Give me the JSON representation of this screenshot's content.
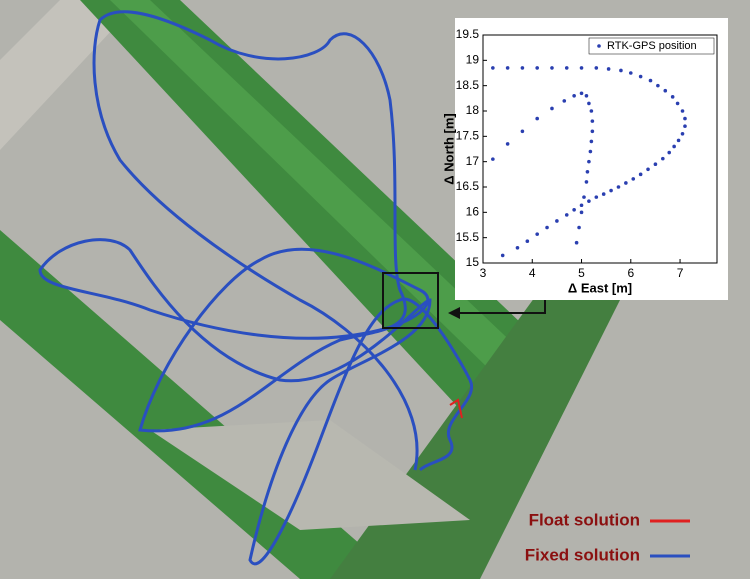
{
  "chart_data": {
    "type": "scatter",
    "xlabel": "Δ East [m]",
    "ylabel": "Δ North [m]",
    "xlim": [
      3,
      7.75
    ],
    "xticks": [
      3,
      4,
      5,
      6,
      7
    ],
    "ylim": [
      15,
      19.5
    ],
    "yticks": [
      15,
      15.5,
      16,
      16.5,
      17,
      17.5,
      18,
      18.5,
      19,
      19.5
    ],
    "legend": "upper right",
    "series": [
      {
        "name": "RTK-GPS position",
        "color": "#2a3fb0",
        "x": [
          3.2,
          3.5,
          3.8,
          4.1,
          4.4,
          4.7,
          5.0,
          5.3,
          5.55,
          5.8,
          6.0,
          6.2,
          6.4,
          6.55,
          6.7,
          6.85,
          6.95,
          7.05,
          7.1,
          7.1,
          7.05,
          6.97,
          6.88,
          6.78,
          6.65,
          6.5,
          6.35,
          6.2,
          6.05,
          5.9,
          5.75,
          5.6,
          5.45,
          5.3,
          5.15,
          5.0,
          4.85,
          4.7,
          4.5,
          4.3,
          4.1,
          3.9,
          3.7,
          3.4,
          3.2,
          3.5,
          3.8,
          4.1,
          4.4,
          4.65,
          4.85,
          5.0,
          5.1,
          5.15,
          5.2,
          5.22,
          5.22,
          5.2,
          5.18,
          5.15,
          5.12,
          5.1,
          5.05,
          5.0,
          4.95,
          4.9
        ],
        "values": [
          18.85,
          18.85,
          18.85,
          18.85,
          18.85,
          18.85,
          18.85,
          18.85,
          18.83,
          18.8,
          18.75,
          18.68,
          18.6,
          18.5,
          18.4,
          18.28,
          18.15,
          18.0,
          17.85,
          17.7,
          17.55,
          17.42,
          17.3,
          17.18,
          17.06,
          16.95,
          16.85,
          16.75,
          16.66,
          16.58,
          16.5,
          16.43,
          16.36,
          16.3,
          16.22,
          16.14,
          16.05,
          15.95,
          15.83,
          15.7,
          15.57,
          15.43,
          15.3,
          15.15,
          17.05,
          17.35,
          17.6,
          17.85,
          18.05,
          18.2,
          18.3,
          18.35,
          18.3,
          18.15,
          18.0,
          17.8,
          17.6,
          17.4,
          17.2,
          17.0,
          16.8,
          16.6,
          16.3,
          16.0,
          15.7,
          15.4
        ]
      }
    ]
  },
  "map_legend": {
    "float": {
      "label": "Float solution",
      "color": "#e02020"
    },
    "fixed": {
      "label": "Fixed solution",
      "color": "#2a4fc0"
    }
  }
}
